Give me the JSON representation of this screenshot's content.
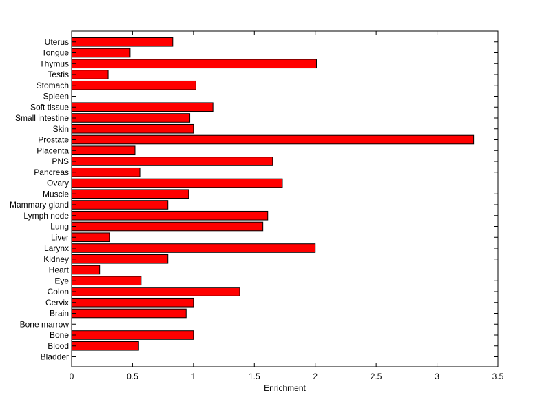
{
  "chart_data": {
    "type": "bar",
    "orientation": "horizontal",
    "title": "",
    "xlabel": "Enrichment",
    "ylabel": "",
    "xlim": [
      0,
      3.5
    ],
    "xticks": [
      0,
      0.5,
      1,
      1.5,
      2,
      2.5,
      3,
      3.5
    ],
    "xtick_labels": [
      "0",
      "0.5",
      "1",
      "1.5",
      "2",
      "2.5",
      "3",
      "3.5"
    ],
    "grid": false,
    "legend": "none",
    "bar_color": "#ff0000",
    "bar_edge_color": "#000000",
    "categories": [
      "Bladder",
      "Blood",
      "Bone",
      "Bone marrow",
      "Brain",
      "Cervix",
      "Colon",
      "Eye",
      "Heart",
      "Kidney",
      "Larynx",
      "Liver",
      "Lung",
      "Lymph node",
      "Mammary gland",
      "Muscle",
      "Ovary",
      "Pancreas",
      "PNS",
      "Placenta",
      "Prostate",
      "Skin",
      "Small intestine",
      "Soft tissue",
      "Spleen",
      "Stomach",
      "Testis",
      "Thymus",
      "Tongue",
      "Uterus"
    ],
    "values": [
      0,
      0.55,
      1.0,
      0,
      0.94,
      1.0,
      1.38,
      0.57,
      0.23,
      0.79,
      2.0,
      0.31,
      1.57,
      1.61,
      0.79,
      0.96,
      1.73,
      0.56,
      1.65,
      0.52,
      3.3,
      1.0,
      0.97,
      1.16,
      0,
      1.02,
      0.3,
      2.01,
      0.48,
      0.83
    ]
  }
}
